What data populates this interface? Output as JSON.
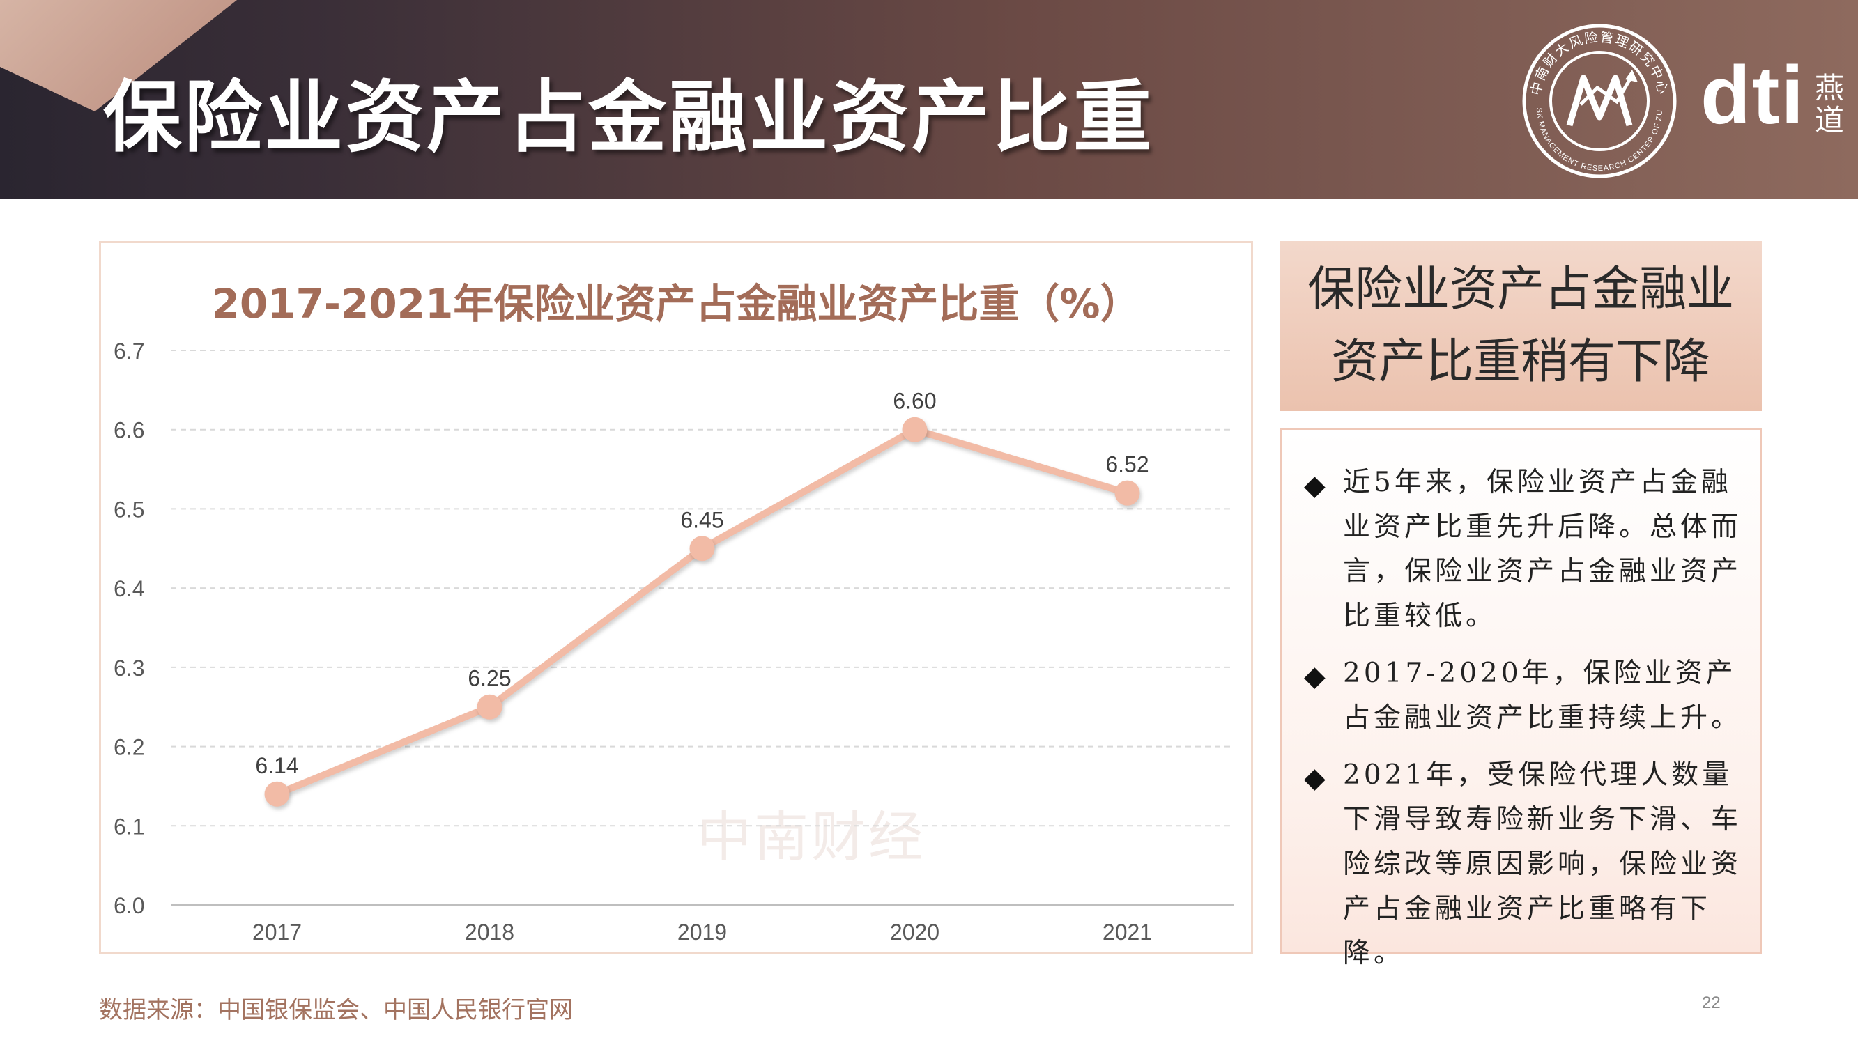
{
  "header": {
    "title": "保险业资产占金融业资产比重",
    "logo_text": "dti",
    "logo_sub": "燕道",
    "seal_text_top": "中南财大风险管理研究中心",
    "seal_text_bottom": "RISK MANAGEMENT RESEARCH CENTER OF ZUEL"
  },
  "colors": {
    "header_dark": "#2a2530",
    "header_brown": "#8e6a5e",
    "line": "#f2bba6",
    "title_brown": "#a36c58",
    "panel_border": "#f1d9cc",
    "side_head_bg": "#ebc2ae"
  },
  "chart_data": {
    "type": "line",
    "title": "2017-2021年保险业资产占金融业资产比重（%）",
    "categories": [
      "2017",
      "2018",
      "2019",
      "2020",
      "2021"
    ],
    "values": [
      6.14,
      6.25,
      6.45,
      6.6,
      6.52
    ],
    "data_labels": [
      "6.14",
      "6.25",
      "6.45",
      "6.60",
      "6.52"
    ],
    "ylim": [
      6.0,
      6.7
    ],
    "yticks": [
      "6.0",
      "6.1",
      "6.2",
      "6.3",
      "6.4",
      "6.5",
      "6.6",
      "6.7"
    ],
    "grid": true,
    "xlabel": "",
    "ylabel": ""
  },
  "watermark": "中南财经",
  "side": {
    "heading": "保险业资产占金融业资产比重稍有下降",
    "bullets": [
      {
        "mark": "◆",
        "text": "近5年来，保险业资产占金融业资产比重先升后降。总体而言，保险业资产占金融业资产比重较低。"
      },
      {
        "mark": "◆",
        "text": "2017-2020年，保险业资产占金融业资产比重持续上升。"
      },
      {
        "mark": "◆",
        "text": "2021年，受保险代理人数量下滑导致寿险新业务下滑、车险综改等原因影响，保险业资产占金融业资产比重略有下降。"
      }
    ]
  },
  "footer": {
    "source": "数据来源：中国银保监会、中国人民银行官网",
    "page": "22"
  }
}
